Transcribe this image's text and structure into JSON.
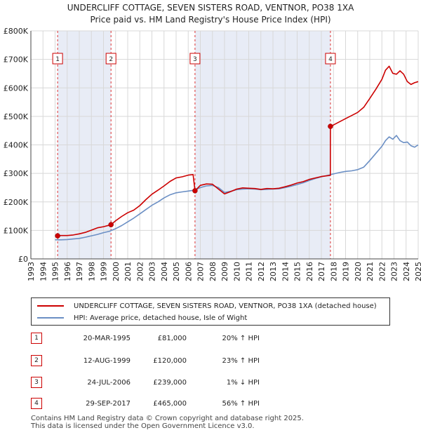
{
  "title_line1": "UNDERCLIFF COTTAGE, SEVEN SISTERS ROAD, VENTNOR, PO38 1XA",
  "title_line2": "Price paid vs. HM Land Registry's House Price Index (HPI)",
  "chart_data": {
    "type": "line",
    "xlim": [
      1993,
      2025
    ],
    "ylim": [
      0,
      800000
    ],
    "y_ticks": [
      0,
      100000,
      200000,
      300000,
      400000,
      500000,
      600000,
      700000,
      800000
    ],
    "y_tick_labels": [
      "£0",
      "£100K",
      "£200K",
      "£300K",
      "£400K",
      "£500K",
      "£600K",
      "£700K",
      "£800K"
    ],
    "x_ticks": [
      1993,
      1994,
      1995,
      1996,
      1997,
      1998,
      1999,
      2000,
      2001,
      2002,
      2003,
      2004,
      2005,
      2006,
      2007,
      2008,
      2009,
      2010,
      2011,
      2012,
      2013,
      2014,
      2015,
      2016,
      2017,
      2018,
      2019,
      2020,
      2021,
      2022,
      2023,
      2024,
      2025
    ],
    "x_tick_labels": [
      "1993",
      "1994",
      "1995",
      "1996",
      "1997",
      "1998",
      "1999",
      "2000",
      "2001",
      "2002",
      "2003",
      "2004",
      "2005",
      "2006",
      "2007",
      "2008",
      "2009",
      "2010",
      "2011",
      "2012",
      "2013",
      "2014",
      "2015",
      "2016",
      "2017",
      "2018",
      "2019",
      "2020",
      "2021",
      "2022",
      "2023",
      "2024",
      "2025"
    ],
    "grid": true,
    "shaded_ranges": [
      [
        1995.21,
        1999.62
      ],
      [
        2006.56,
        2017.75
      ]
    ],
    "series": [
      {
        "name": "UNDERCLIFF COTTAGE, SEVEN SISTERS ROAD, VENTNOR, PO38 1XA (detached house)",
        "color": "#cc0000",
        "x": [
          1995.21,
          1995.5,
          1996,
          1996.5,
          1997,
          1997.5,
          1998,
          1998.5,
          1999,
          1999.62,
          2000,
          2000.5,
          2001,
          2001.5,
          2002,
          2002.5,
          2003,
          2003.5,
          2004,
          2004.5,
          2005,
          2005.5,
          2006,
          2006.4,
          2006.56,
          2007,
          2007.5,
          2008,
          2008.5,
          2009,
          2009.5,
          2010,
          2010.5,
          2011,
          2011.5,
          2012,
          2012.5,
          2013,
          2013.5,
          2014,
          2014.5,
          2015,
          2015.5,
          2016,
          2016.5,
          2017,
          2017.5,
          2017.74,
          2017.75,
          2018,
          2018.5,
          2019,
          2019.5,
          2020,
          2020.5,
          2021,
          2021.5,
          2022,
          2022.3,
          2022.6,
          2022.9,
          2023.2,
          2023.5,
          2023.8,
          2024.1,
          2024.4,
          2024.7,
          2025
        ],
        "values": [
          81000,
          82000,
          82000,
          84000,
          88000,
          93000,
          101000,
          109000,
          113000,
          120000,
          134000,
          149000,
          162000,
          171000,
          187000,
          208000,
          227000,
          241000,
          256000,
          272000,
          284000,
          288000,
          294000,
          296000,
          239000,
          258000,
          263000,
          262000,
          245000,
          228000,
          236000,
          245000,
          249000,
          248000,
          247000,
          244000,
          247000,
          246000,
          248000,
          253000,
          259000,
          266000,
          271000,
          279000,
          284000,
          289000,
          292000,
          293000,
          465000,
          470000,
          481000,
          492000,
          503000,
          514000,
          532000,
          563000,
          595000,
          630000,
          662000,
          676000,
          651000,
          648000,
          660000,
          648000,
          622000,
          612000,
          618000,
          622000
        ]
      },
      {
        "name": "HPI: Average price, detached house, Isle of Wight",
        "color": "#6b8fc4",
        "x": [
          1995,
          1995.5,
          1996,
          1996.5,
          1997,
          1997.5,
          1998,
          1998.5,
          1999,
          1999.5,
          2000,
          2000.5,
          2001,
          2001.5,
          2002,
          2002.5,
          2003,
          2003.5,
          2004,
          2004.5,
          2005,
          2005.5,
          2006,
          2006.5,
          2007,
          2007.5,
          2008,
          2008.5,
          2009,
          2009.5,
          2010,
          2010.5,
          2011,
          2011.5,
          2012,
          2012.5,
          2013,
          2013.5,
          2014,
          2014.5,
          2015,
          2015.5,
          2016,
          2016.5,
          2017,
          2017.5,
          2018,
          2018.5,
          2019,
          2019.5,
          2020,
          2020.5,
          2021,
          2021.5,
          2022,
          2022.3,
          2022.6,
          2022.9,
          2023.2,
          2023.5,
          2023.8,
          2024.1,
          2024.4,
          2024.7,
          2025
        ],
        "values": [
          67000,
          67000,
          68000,
          70000,
          72000,
          76000,
          81000,
          86000,
          92000,
          97000,
          106000,
          117000,
          130000,
          143000,
          158000,
          173000,
          188000,
          200000,
          214000,
          225000,
          232000,
          235000,
          238000,
          241000,
          250000,
          256000,
          258000,
          250000,
          233000,
          237000,
          243000,
          245000,
          246000,
          245000,
          243000,
          244000,
          245000,
          246000,
          250000,
          255000,
          261000,
          267000,
          275000,
          282000,
          288000,
          293000,
          298000,
          303000,
          307000,
          309000,
          313000,
          322000,
          345000,
          370000,
          395000,
          415000,
          428000,
          420000,
          433000,
          415000,
          408000,
          410000,
          397000,
          392000,
          400000
        ]
      }
    ],
    "sales": [
      {
        "label": "1",
        "x": 1995.21,
        "value": 81000
      },
      {
        "label": "2",
        "x": 1999.62,
        "value": 120000
      },
      {
        "label": "3",
        "x": 2006.56,
        "value": 239000
      },
      {
        "label": "4",
        "x": 2017.75,
        "value": 465000
      }
    ]
  },
  "legend": {
    "series1": "UNDERCLIFF COTTAGE, SEVEN SISTERS ROAD, VENTNOR, PO38 1XA (detached house)",
    "series2": "HPI: Average price, detached house, Isle of Wight"
  },
  "transactions": [
    {
      "num": "1",
      "date": "20-MAR-1995",
      "price": "£81,000",
      "hpi": "20% ↑ HPI"
    },
    {
      "num": "2",
      "date": "12-AUG-1999",
      "price": "£120,000",
      "hpi": "23% ↑ HPI"
    },
    {
      "num": "3",
      "date": "24-JUL-2006",
      "price": "£239,000",
      "hpi": "1% ↓ HPI"
    },
    {
      "num": "4",
      "date": "29-SEP-2017",
      "price": "£465,000",
      "hpi": "56% ↑ HPI"
    }
  ],
  "footer": {
    "line1": "Contains HM Land Registry data © Crown copyright and database right 2025.",
    "line2": "This data is licensed under the Open Government Licence v3.0."
  }
}
